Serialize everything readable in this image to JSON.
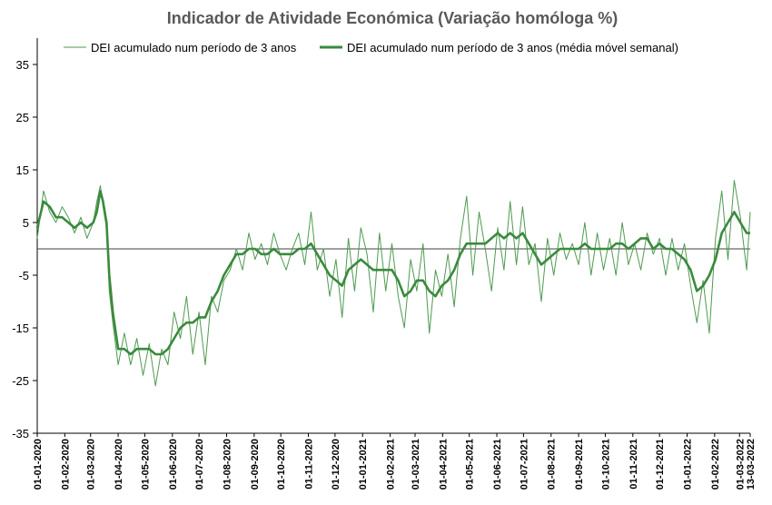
{
  "chart_data": {
    "type": "line",
    "title": "Indicador de Atividade Económica (Variação homóloga %)",
    "xlabel": "",
    "ylabel": "",
    "ylim": [
      -35,
      40
    ],
    "yticks": [
      35,
      25,
      15,
      5,
      -5,
      -15,
      -25,
      -35
    ],
    "x_tick_labels": [
      "01-01-2020",
      "01-02-2020",
      "01-03-2020",
      "01-04-2020",
      "01-05-2020",
      "01-06-2020",
      "01-07-2020",
      "01-08-2020",
      "01-09-2020",
      "01-10-2020",
      "01-11-2020",
      "01-12-2020",
      "01-01-2021",
      "01-02-2021",
      "01-03-2021",
      "01-04-2021",
      "01-05-2021",
      "01-06-2021",
      "01-07-2021",
      "01-08-2021",
      "01-09-2021",
      "01-10-2021",
      "01-11-2021",
      "01-12-2021",
      "01-01-2022",
      "01-02-2022",
      "01-03-2022",
      "13-03-2022"
    ],
    "legend_position": "top",
    "colors": {
      "daily": "#4e9a50",
      "weekly": "#3b8a3e",
      "zero_line": "#404040"
    },
    "series": [
      {
        "name": "DEI acumulado num período de 3 anos",
        "style": "thin",
        "x": [
          "2020-01-01",
          "2020-01-08",
          "2020-01-15",
          "2020-01-22",
          "2020-01-29",
          "2020-02-05",
          "2020-02-12",
          "2020-02-19",
          "2020-02-26",
          "2020-03-04",
          "2020-03-08",
          "2020-03-12",
          "2020-03-15",
          "2020-03-19",
          "2020-03-22",
          "2020-03-26",
          "2020-04-01",
          "2020-04-08",
          "2020-04-15",
          "2020-04-22",
          "2020-04-29",
          "2020-05-06",
          "2020-05-13",
          "2020-05-20",
          "2020-05-27",
          "2020-06-03",
          "2020-06-10",
          "2020-06-17",
          "2020-06-24",
          "2020-07-01",
          "2020-07-08",
          "2020-07-15",
          "2020-07-22",
          "2020-07-29",
          "2020-08-05",
          "2020-08-12",
          "2020-08-19",
          "2020-08-26",
          "2020-09-02",
          "2020-09-09",
          "2020-09-16",
          "2020-09-23",
          "2020-09-30",
          "2020-10-07",
          "2020-10-14",
          "2020-10-21",
          "2020-10-28",
          "2020-11-04",
          "2020-11-11",
          "2020-11-18",
          "2020-11-25",
          "2020-12-02",
          "2020-12-09",
          "2020-12-16",
          "2020-12-23",
          "2020-12-30",
          "2021-01-06",
          "2021-01-13",
          "2021-01-20",
          "2021-01-27",
          "2021-02-03",
          "2021-02-10",
          "2021-02-17",
          "2021-02-24",
          "2021-03-03",
          "2021-03-10",
          "2021-03-17",
          "2021-03-24",
          "2021-03-31",
          "2021-04-07",
          "2021-04-14",
          "2021-04-21",
          "2021-04-28",
          "2021-05-05",
          "2021-05-12",
          "2021-05-19",
          "2021-05-26",
          "2021-06-02",
          "2021-06-09",
          "2021-06-16",
          "2021-06-23",
          "2021-06-30",
          "2021-07-07",
          "2021-07-14",
          "2021-07-21",
          "2021-07-28",
          "2021-08-04",
          "2021-08-11",
          "2021-08-18",
          "2021-08-25",
          "2021-09-01",
          "2021-09-08",
          "2021-09-15",
          "2021-09-22",
          "2021-09-29",
          "2021-10-06",
          "2021-10-13",
          "2021-10-20",
          "2021-10-27",
          "2021-11-03",
          "2021-11-10",
          "2021-11-17",
          "2021-11-24",
          "2021-12-01",
          "2021-12-08",
          "2021-12-15",
          "2021-12-22",
          "2021-12-29",
          "2022-01-05",
          "2022-01-12",
          "2022-01-19",
          "2022-01-26",
          "2022-02-02",
          "2022-02-09",
          "2022-02-16",
          "2022-02-23",
          "2022-03-02",
          "2022-03-09",
          "2022-03-13"
        ],
        "values": [
          2,
          11,
          7,
          5,
          8,
          6,
          3,
          6,
          2,
          5,
          9,
          12,
          8,
          4,
          -8,
          -14,
          -22,
          -16,
          -22,
          -17,
          -24,
          -18,
          -26,
          -19,
          -22,
          -12,
          -17,
          -9,
          -20,
          -12,
          -22,
          -9,
          -12,
          -6,
          -4,
          0,
          -4,
          3,
          -2,
          1,
          -3,
          3,
          -1,
          -4,
          0,
          3,
          -3,
          7,
          -4,
          0,
          -9,
          -2,
          -13,
          2,
          -8,
          4,
          -1,
          -12,
          3,
          -8,
          1,
          -9,
          -15,
          -2,
          -8,
          1,
          -16,
          -4,
          -9,
          -1,
          -11,
          2,
          10,
          -5,
          7,
          0,
          -8,
          4,
          -4,
          9,
          -3,
          8,
          -3,
          1,
          -10,
          2,
          -5,
          3,
          -2,
          1,
          -3,
          5,
          -5,
          3,
          -4,
          2,
          -5,
          5,
          -3,
          1,
          -4,
          3,
          -1,
          2,
          -5,
          2,
          -4,
          1,
          -7,
          -14,
          -6,
          -16,
          2,
          11,
          -2,
          13,
          6,
          -4,
          7
        ]
      },
      {
        "name": "DEI acumulado num período de 3 anos (média móvel semanal)",
        "style": "thick",
        "x": [
          "2020-01-01",
          "2020-01-08",
          "2020-01-15",
          "2020-01-22",
          "2020-01-29",
          "2020-02-05",
          "2020-02-12",
          "2020-02-19",
          "2020-02-26",
          "2020-03-04",
          "2020-03-08",
          "2020-03-12",
          "2020-03-15",
          "2020-03-19",
          "2020-03-22",
          "2020-03-26",
          "2020-04-01",
          "2020-04-08",
          "2020-04-15",
          "2020-04-22",
          "2020-04-29",
          "2020-05-06",
          "2020-05-13",
          "2020-05-20",
          "2020-05-27",
          "2020-06-03",
          "2020-06-10",
          "2020-06-17",
          "2020-06-24",
          "2020-07-01",
          "2020-07-08",
          "2020-07-15",
          "2020-07-22",
          "2020-07-29",
          "2020-08-05",
          "2020-08-12",
          "2020-08-19",
          "2020-08-26",
          "2020-09-02",
          "2020-09-09",
          "2020-09-16",
          "2020-09-23",
          "2020-09-30",
          "2020-10-07",
          "2020-10-14",
          "2020-10-21",
          "2020-10-28",
          "2020-11-04",
          "2020-11-11",
          "2020-11-18",
          "2020-11-25",
          "2020-12-02",
          "2020-12-09",
          "2020-12-16",
          "2020-12-23",
          "2020-12-30",
          "2021-01-06",
          "2021-01-13",
          "2021-01-20",
          "2021-01-27",
          "2021-02-03",
          "2021-02-10",
          "2021-02-17",
          "2021-02-24",
          "2021-03-03",
          "2021-03-10",
          "2021-03-17",
          "2021-03-24",
          "2021-03-31",
          "2021-04-07",
          "2021-04-14",
          "2021-04-21",
          "2021-04-28",
          "2021-05-05",
          "2021-05-12",
          "2021-05-19",
          "2021-05-26",
          "2021-06-02",
          "2021-06-09",
          "2021-06-16",
          "2021-06-23",
          "2021-06-30",
          "2021-07-07",
          "2021-07-14",
          "2021-07-21",
          "2021-07-28",
          "2021-08-04",
          "2021-08-11",
          "2021-08-18",
          "2021-08-25",
          "2021-09-01",
          "2021-09-08",
          "2021-09-15",
          "2021-09-22",
          "2021-09-29",
          "2021-10-06",
          "2021-10-13",
          "2021-10-20",
          "2021-10-27",
          "2021-11-03",
          "2021-11-10",
          "2021-11-17",
          "2021-11-24",
          "2021-12-01",
          "2021-12-08",
          "2021-12-15",
          "2021-12-22",
          "2021-12-29",
          "2022-01-05",
          "2022-01-12",
          "2022-01-19",
          "2022-01-26",
          "2022-02-02",
          "2022-02-09",
          "2022-02-16",
          "2022-02-23",
          "2022-03-02",
          "2022-03-09",
          "2022-03-13"
        ],
        "values": [
          4,
          9,
          8,
          6,
          6,
          5,
          4,
          5,
          4,
          5,
          7,
          11,
          9,
          5,
          -5,
          -12,
          -19,
          -19,
          -20,
          -19,
          -19,
          -19,
          -20,
          -20,
          -19,
          -17,
          -15,
          -14,
          -14,
          -13,
          -13,
          -10,
          -8,
          -5,
          -3,
          -1,
          -1,
          0,
          0,
          -1,
          -1,
          0,
          -1,
          -1,
          -1,
          0,
          0,
          1,
          -1,
          -3,
          -5,
          -6,
          -7,
          -4,
          -3,
          -2,
          -3,
          -4,
          -4,
          -4,
          -4,
          -6,
          -9,
          -8,
          -6,
          -6,
          -8,
          -9,
          -7,
          -6,
          -4,
          -1,
          1,
          1,
          1,
          1,
          2,
          3,
          2,
          3,
          2,
          3,
          1,
          -1,
          -3,
          -2,
          -1,
          0,
          0,
          0,
          0,
          1,
          0,
          0,
          0,
          0,
          1,
          1,
          0,
          1,
          2,
          2,
          0,
          1,
          0,
          0,
          -1,
          -2,
          -4,
          -8,
          -7,
          -5,
          -2,
          3,
          5,
          7,
          5,
          3,
          3
        ]
      }
    ]
  }
}
